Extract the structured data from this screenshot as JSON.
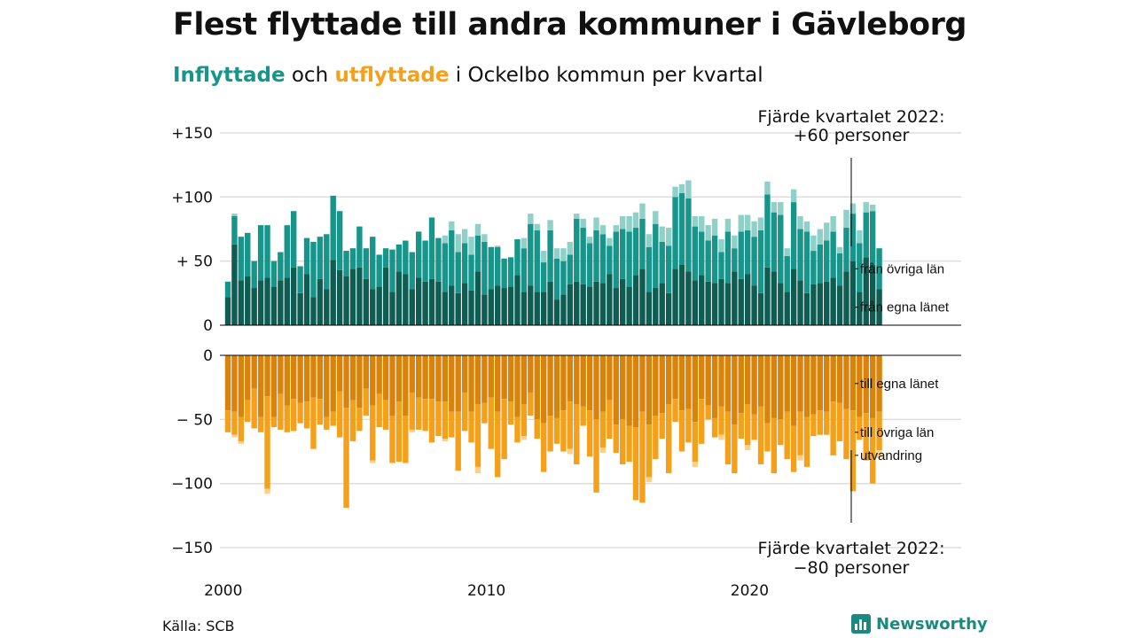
{
  "title": "Flest flyttade till andra kommuner i Gävleborg",
  "subtitle": {
    "in_word": "Inflyttade",
    "and_word": " och ",
    "out_word": "utflyttade",
    "rest": " i Ockelbo kommun per kvartal"
  },
  "source": "Källa: SCB",
  "brand": "Newsworthy",
  "colors": {
    "in_local": "#0f5c52",
    "in_other": "#17958a",
    "in_extra": "#8fd1c8",
    "out_local": "#d9830a",
    "out_other": "#f5a01a",
    "out_extra": "#fbd089",
    "grid": "#dddddd",
    "axis": "#000000"
  },
  "chart_data": {
    "type": "bar",
    "stacked": true,
    "start_year": 2000,
    "periods_per_year": 4,
    "x_ticks": [
      "2000",
      "2010",
      "2020"
    ],
    "top_panel": {
      "y_ticks": [
        "+150",
        "+100",
        "+ 50",
        "0"
      ],
      "y_tick_values": [
        150,
        100,
        50,
        0
      ],
      "ylim": [
        0,
        150
      ],
      "series_names": [
        "från egna länet",
        "från övriga län"
      ],
      "local": [
        22,
        63,
        35,
        38,
        29,
        35,
        37,
        30,
        35,
        37,
        45,
        25,
        40,
        22,
        36,
        28,
        51,
        43,
        38,
        44,
        45,
        36,
        28,
        30,
        45,
        26,
        42,
        40,
        28,
        37,
        34,
        36,
        34,
        26,
        31,
        25,
        33,
        27,
        42,
        24,
        28,
        31,
        29,
        30,
        39,
        26,
        31,
        26,
        26,
        34,
        20,
        24,
        32,
        34,
        32,
        30,
        34,
        33,
        40,
        29,
        36,
        30,
        39,
        44,
        26,
        29,
        33,
        25,
        44,
        47,
        42,
        35,
        39,
        34,
        33,
        36,
        33,
        42,
        36,
        40,
        31,
        25,
        45,
        42,
        33,
        26,
        44,
        35,
        25,
        32,
        33,
        34,
        37,
        31,
        42,
        50,
        26,
        53,
        47,
        28
      ],
      "other": [
        12,
        22,
        34,
        34,
        21,
        43,
        41,
        20,
        22,
        41,
        44,
        21,
        28,
        43,
        33,
        43,
        50,
        46,
        20,
        16,
        32,
        24,
        41,
        25,
        15,
        33,
        21,
        26,
        29,
        36,
        32,
        48,
        34,
        38,
        43,
        32,
        31,
        28,
        28,
        41,
        33,
        30,
        23,
        23,
        28,
        34,
        48,
        48,
        23,
        40,
        32,
        26,
        23,
        49,
        44,
        34,
        40,
        38,
        22,
        44,
        39,
        43,
        37,
        39,
        35,
        50,
        32,
        37,
        56,
        56,
        57,
        42,
        34,
        32,
        37,
        21,
        40,
        18,
        37,
        34,
        38,
        49,
        57,
        46,
        53,
        28,
        52,
        40,
        48,
        26,
        30,
        32,
        36,
        25,
        34,
        37,
        38,
        35,
        42,
        32
      ],
      "extra": [
        0,
        2,
        0,
        0,
        0,
        0,
        0,
        0,
        0,
        0,
        0,
        0,
        0,
        0,
        0,
        0,
        0,
        0,
        0,
        0,
        0,
        0,
        0,
        0,
        0,
        0,
        0,
        0,
        0,
        0,
        0,
        0,
        0,
        6,
        7,
        14,
        11,
        14,
        9,
        6,
        0,
        1,
        0,
        0,
        0,
        8,
        8,
        5,
        9,
        8,
        8,
        10,
        10,
        4,
        7,
        5,
        10,
        7,
        6,
        5,
        10,
        12,
        12,
        12,
        10,
        10,
        12,
        14,
        8,
        7,
        14,
        8,
        12,
        12,
        13,
        10,
        10,
        10,
        13,
        12,
        12,
        10,
        10,
        8,
        10,
        6,
        10,
        10,
        8,
        12,
        12,
        14,
        12,
        5,
        14,
        8,
        10,
        8,
        5,
        0
      ],
      "annotation": [
        "Fjärde kvartalet 2022:",
        "+60 personer"
      ],
      "segment_labels": [
        {
          "text": "från övriga län",
          "value": 44
        },
        {
          "text": "från egna länet",
          "value": 14
        }
      ]
    },
    "bottom_panel": {
      "y_ticks": [
        "0",
        "− 50",
        "−100",
        "−150"
      ],
      "y_tick_values": [
        0,
        -50,
        -100,
        -150
      ],
      "ylim": [
        -150,
        0
      ],
      "series_names": [
        "till egna länet",
        "till övriga län",
        "utvandring"
      ],
      "local": [
        43,
        44,
        48,
        35,
        26,
        48,
        32,
        48,
        30,
        39,
        34,
        37,
        36,
        33,
        34,
        48,
        44,
        28,
        41,
        35,
        41,
        26,
        39,
        30,
        35,
        47,
        36,
        47,
        29,
        33,
        34,
        34,
        36,
        36,
        44,
        44,
        29,
        44,
        38,
        37,
        33,
        44,
        34,
        36,
        48,
        38,
        29,
        50,
        53,
        47,
        49,
        43,
        36,
        38,
        40,
        43,
        50,
        44,
        35,
        54,
        50,
        55,
        56,
        44,
        54,
        47,
        45,
        38,
        34,
        43,
        42,
        52,
        34,
        39,
        49,
        40,
        44,
        54,
        45,
        38,
        46,
        40,
        53,
        49,
        50,
        44,
        55,
        44,
        48,
        46,
        43,
        44,
        36,
        37,
        42,
        43,
        48,
        45,
        49,
        44
      ],
      "other": [
        17,
        18,
        19,
        17,
        31,
        12,
        72,
        8,
        28,
        21,
        25,
        16,
        21,
        40,
        20,
        10,
        11,
        36,
        78,
        32,
        18,
        21,
        43,
        26,
        23,
        37,
        47,
        37,
        29,
        25,
        25,
        34,
        27,
        29,
        20,
        46,
        30,
        24,
        49,
        16,
        40,
        51,
        47,
        18,
        20,
        25,
        18,
        15,
        38,
        28,
        20,
        32,
        37,
        47,
        15,
        36,
        57,
        28,
        30,
        22,
        35,
        28,
        57,
        71,
        41,
        34,
        20,
        54,
        18,
        32,
        26,
        31,
        35,
        11,
        15,
        22,
        41,
        38,
        20,
        32,
        20,
        45,
        22,
        43,
        20,
        37,
        36,
        34,
        39,
        17,
        19,
        18,
        42,
        30,
        39,
        63,
        18,
        37,
        51,
        30
      ],
      "extra": [
        0,
        2,
        2,
        0,
        0,
        0,
        4,
        0,
        0,
        0,
        0,
        0,
        0,
        0,
        0,
        0,
        0,
        0,
        0,
        0,
        0,
        0,
        2,
        0,
        0,
        0,
        0,
        0,
        2,
        0,
        0,
        0,
        0,
        2,
        0,
        0,
        0,
        0,
        5,
        0,
        0,
        0,
        0,
        0,
        0,
        3,
        0,
        0,
        0,
        0,
        0,
        0,
        4,
        0,
        0,
        0,
        0,
        4,
        0,
        0,
        0,
        0,
        0,
        0,
        4,
        0,
        0,
        0,
        0,
        0,
        0,
        4,
        0,
        0,
        0,
        4,
        0,
        0,
        0,
        4,
        0,
        0,
        0,
        0,
        0,
        0,
        0,
        4,
        0,
        0,
        0,
        0,
        0,
        0,
        0,
        0,
        0,
        0,
        0,
        6
      ],
      "annotation": [
        "Fjärde kvartalet 2022:",
        "−80 personer"
      ],
      "segment_labels": [
        {
          "text": "till egna länet",
          "value": -22
        },
        {
          "text": "till övriga län",
          "value": -60
        },
        {
          "text": "utvandring",
          "value": -78
        }
      ]
    }
  }
}
